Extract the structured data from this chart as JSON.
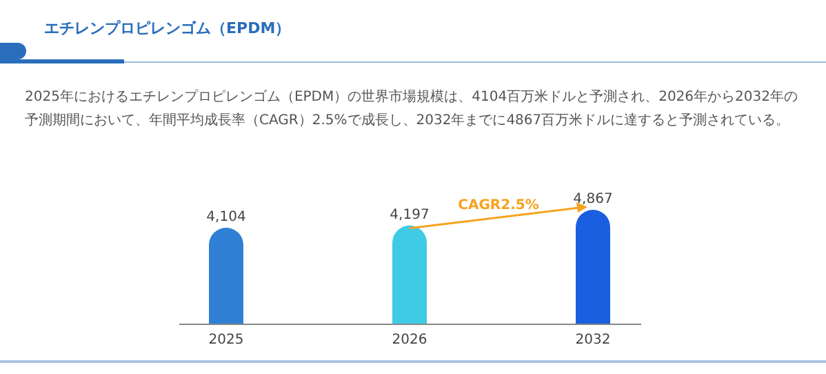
{
  "chart_data": {
    "type": "bar",
    "title": "エチレンプロピレンゴム（EPDM）",
    "subtitle": "2025年におけるエチレンプロピレンゴム（EPDM）の世界市場規模は、4104百万米ドルと予測され、2026年から2032年の予測期間において、年間平均成長率（CAGR）2.5%で成長し、2032年までに4867百万米ドルに達すると予測されている。",
    "categories": [
      "2025",
      "2026",
      "2032"
    ],
    "values": [
      4104,
      4197,
      4867
    ],
    "colors": [
      "#2f80d4",
      "#3fcbe6",
      "#1a5fe0"
    ],
    "value_labels": [
      "4,104",
      "4,197",
      "4,867"
    ],
    "annotations": [
      "CAGR2.5%"
    ]
  }
}
